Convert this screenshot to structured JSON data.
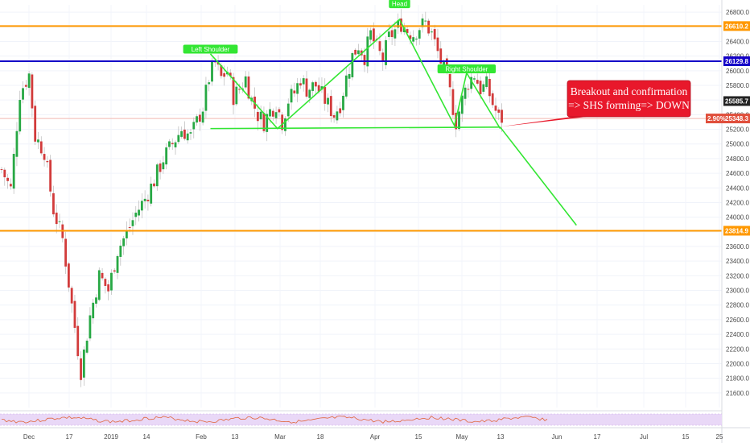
{
  "chart_data": {
    "type": "candlestick",
    "y_range": [
      21400,
      26900
    ],
    "y_ticks": [
      21600,
      21800,
      22000,
      22200,
      22400,
      22600,
      22800,
      23000,
      23200,
      23400,
      23600,
      23800,
      24000,
      24200,
      24400,
      24600,
      24800,
      25000,
      25200,
      25400,
      25600,
      25800,
      26000,
      26200,
      26400,
      26600,
      26800
    ],
    "x_range_days": [
      0,
      236
    ],
    "x_ticks": [
      {
        "label": "Dec"
      },
      {
        "label": "17"
      },
      {
        "label": "2019"
      },
      {
        "label": "14"
      },
      {
        "label": "Feb"
      },
      {
        "label": "13"
      },
      {
        "label": "Mar"
      },
      {
        "label": "18"
      },
      {
        "label": "Apr"
      },
      {
        "label": "15"
      },
      {
        "label": "May"
      },
      {
        "label": "13"
      },
      {
        "label": "Jun"
      },
      {
        "label": "17"
      },
      {
        "label": "Jul"
      },
      {
        "label": "15"
      },
      {
        "label": "25"
      }
    ],
    "horizontal_levels": [
      {
        "value": 26610.2,
        "label": "26610.2",
        "color": "#ff9800"
      },
      {
        "value": 26129.8,
        "label": "26129.8",
        "color": "#1400c7"
      },
      {
        "value": 23814.9,
        "label": "23814.9",
        "color": "#ff9800"
      }
    ],
    "last_price": {
      "value": 25348.3,
      "label": "25348.3",
      "change": "2.90%",
      "color": "#e04f3c"
    },
    "current_price": {
      "value": 25585.7,
      "label": "25585.7"
    },
    "pattern": {
      "color": "#33e633",
      "labels": [
        {
          "text": "Left Shoulder",
          "day": 69,
          "value": 26290
        },
        {
          "text": "Head",
          "day": 131,
          "value": 26910
        },
        {
          "text": "Right Shoulder",
          "day": 153,
          "value": 26020
        }
      ],
      "shoulder_line": [
        [
          69,
          26230
        ],
        [
          91,
          25210
        ],
        [
          131,
          26700
        ],
        [
          149,
          25250
        ],
        [
          153,
          25970
        ],
        [
          164,
          25210
        ]
      ],
      "neckline": [
        [
          69,
          25210
        ],
        [
          164,
          25230
        ]
      ],
      "projection": [
        [
          164,
          25230
        ],
        [
          189,
          23890
        ]
      ]
    },
    "callout": {
      "lines": [
        "Breakout and confirmation",
        "=> SHS forming=> DOWN"
      ],
      "color": "#e8182b",
      "target_day": 164,
      "target_value": 25235
    },
    "candles_path": [
      [
        0,
        24650
      ],
      [
        3,
        24380
      ],
      [
        6,
        25700
      ],
      [
        9,
        25950
      ],
      [
        11,
        25100
      ],
      [
        14,
        24900
      ],
      [
        17,
        24100
      ],
      [
        20,
        23700
      ],
      [
        23,
        22800
      ],
      [
        26,
        21900
      ],
      [
        29,
        22650
      ],
      [
        32,
        23200
      ],
      [
        35,
        23000
      ],
      [
        38,
        23550
      ],
      [
        41,
        23780
      ],
      [
        44,
        24050
      ],
      [
        47,
        24250
      ],
      [
        50,
        24500
      ],
      [
        53,
        24800
      ],
      [
        56,
        25000
      ],
      [
        59,
        25200
      ],
      [
        62,
        25100
      ],
      [
        64,
        25300
      ],
      [
        66,
        25500
      ],
      [
        68,
        25900
      ],
      [
        70,
        26100
      ],
      [
        72,
        25900
      ],
      [
        74,
        26000
      ],
      [
        76,
        25650
      ],
      [
        78,
        25750
      ],
      [
        80,
        25900
      ],
      [
        82,
        25600
      ],
      [
        84,
        25400
      ],
      [
        86,
        25300
      ],
      [
        88,
        25450
      ],
      [
        90,
        25550
      ],
      [
        92,
        25300
      ],
      [
        94,
        25600
      ],
      [
        96,
        25700
      ],
      [
        98,
        25900
      ],
      [
        100,
        25750
      ],
      [
        103,
        25800
      ],
      [
        106,
        25600
      ],
      [
        109,
        25400
      ],
      [
        111,
        25550
      ],
      [
        113,
        25900
      ],
      [
        115,
        26200
      ],
      [
        117,
        26350
      ],
      [
        119,
        26200
      ],
      [
        121,
        26500
      ],
      [
        123,
        26300
      ],
      [
        125,
        26150
      ],
      [
        127,
        26450
      ],
      [
        129,
        26550
      ],
      [
        131,
        26650
      ],
      [
        133,
        26550
      ],
      [
        135,
        26500
      ],
      [
        137,
        26600
      ],
      [
        139,
        26650
      ],
      [
        141,
        26500
      ],
      [
        143,
        26250
      ],
      [
        145,
        26000
      ],
      [
        147,
        25700
      ],
      [
        149,
        25300
      ],
      [
        151,
        25600
      ],
      [
        153,
        25850
      ],
      [
        155,
        25950
      ],
      [
        157,
        25750
      ],
      [
        159,
        25800
      ],
      [
        161,
        25550
      ],
      [
        163,
        25350
      ],
      [
        164,
        25348
      ]
    ]
  },
  "rsi_panel": {
    "band_color": "#e9d8f7",
    "line_color": "#e0653b"
  }
}
